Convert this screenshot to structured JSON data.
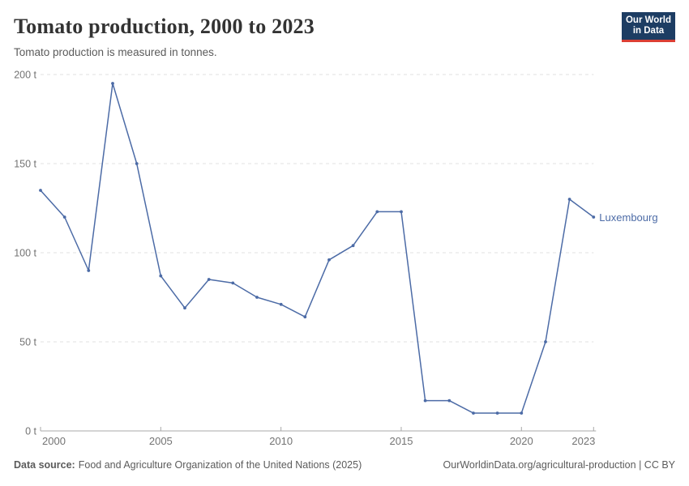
{
  "header": {
    "title": "Tomato production, 2000 to 2023",
    "subtitle": "Tomato production is measured in tonnes.",
    "logo": {
      "line1": "Our World",
      "line2": "in Data"
    }
  },
  "footer": {
    "source_label": "Data source:",
    "source_text": "Food and Agriculture Organization of the United Nations (2025)",
    "citation_url": "OurWorldinData.org/agricultural-production",
    "license_suffix": " | CC BY"
  },
  "colors": {
    "line": "#4C6BA6",
    "gridline": "#e0e0e0",
    "axis": "#a8a8a8",
    "tick_text": "#737373",
    "logo_navy": "#1d3d63",
    "logo_red": "#dc3f34"
  },
  "chart_data": {
    "type": "line",
    "title": "Tomato production, 2000 to 2023",
    "subtitle": "Tomato production is measured in tonnes.",
    "unit": "tonnes",
    "x": [
      2000,
      2001,
      2002,
      2003,
      2004,
      2005,
      2006,
      2007,
      2008,
      2009,
      2010,
      2011,
      2012,
      2013,
      2014,
      2015,
      2016,
      2017,
      2018,
      2019,
      2020,
      2021,
      2022,
      2023
    ],
    "series": [
      {
        "name": "Luxembourg",
        "values": [
          135,
          120,
          90,
          195,
          150,
          87,
          69,
          85,
          83,
          75,
          71,
          64,
          96,
          104,
          123,
          123,
          17,
          17,
          10,
          10,
          10,
          50,
          130,
          120
        ]
      }
    ],
    "ylim": [
      0,
      200
    ],
    "yticks": [
      {
        "value": 0,
        "label": "0 t"
      },
      {
        "value": 50,
        "label": "50 t"
      },
      {
        "value": 100,
        "label": "100 t"
      },
      {
        "value": 150,
        "label": "150 t"
      },
      {
        "value": 200,
        "label": "200 t"
      }
    ],
    "xticks": [
      {
        "value": 2000,
        "label": "2000"
      },
      {
        "value": 2005,
        "label": "2005"
      },
      {
        "value": 2010,
        "label": "2010"
      },
      {
        "value": 2015,
        "label": "2015"
      },
      {
        "value": 2020,
        "label": "2020"
      },
      {
        "value": 2023,
        "label": "2023"
      }
    ],
    "grid": "horizontal-dashed",
    "legend": "end-of-line-label",
    "xlabel": "",
    "ylabel": ""
  }
}
